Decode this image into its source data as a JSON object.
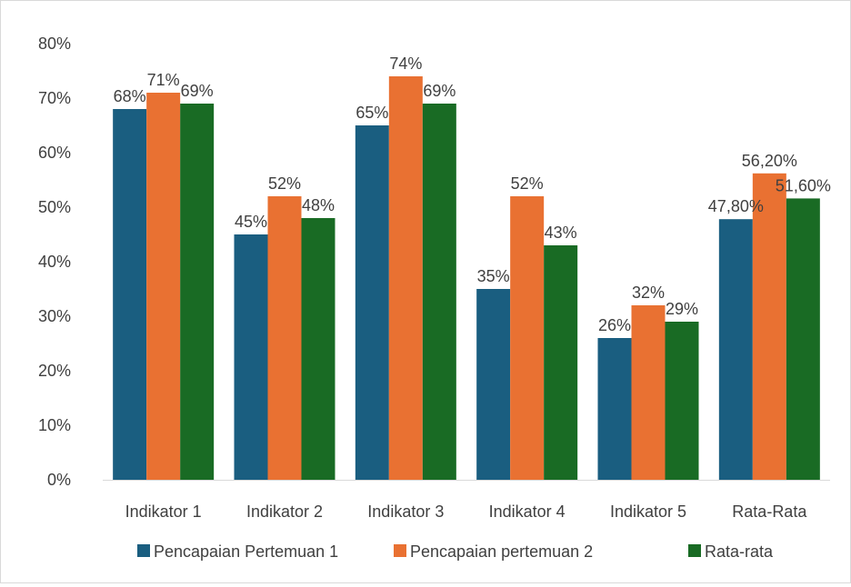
{
  "chart_data": {
    "type": "bar",
    "title": "",
    "xlabel": "",
    "ylabel": "",
    "categories": [
      "Indikator 1",
      "Indikator 2",
      "Indikator 3",
      "Indikator 4",
      "Indikator 5",
      "Rata-Rata"
    ],
    "ylim": [
      0,
      0.8
    ],
    "yticks": [
      0,
      0.1,
      0.2,
      0.3,
      0.4,
      0.5,
      0.6,
      0.7,
      0.8
    ],
    "ytick_labels": [
      "0%",
      "10%",
      "20%",
      "30%",
      "40%",
      "50%",
      "60%",
      "70%",
      "80%"
    ],
    "grid": false,
    "legend_position": "bottom",
    "series": [
      {
        "name": "Pencapaian Pertemuan 1",
        "color": "#1a5e80",
        "values": [
          0.68,
          0.45,
          0.65,
          0.35,
          0.26,
          0.478
        ],
        "labels": [
          "68%",
          "45%",
          "65%",
          "35%",
          "26%",
          "47,80%"
        ]
      },
      {
        "name": "Pencapaian pertemuan 2",
        "color": "#e97132",
        "values": [
          0.71,
          0.52,
          0.74,
          0.52,
          0.32,
          0.562
        ],
        "labels": [
          "71%",
          "52%",
          "74%",
          "52%",
          "32%",
          "56,20%"
        ]
      },
      {
        "name": "Rata-rata",
        "color": "#196b24",
        "values": [
          0.69,
          0.48,
          0.69,
          0.43,
          0.29,
          0.516
        ],
        "labels": [
          "69%",
          "48%",
          "69%",
          "43%",
          "29%",
          "51,60%"
        ]
      }
    ]
  }
}
